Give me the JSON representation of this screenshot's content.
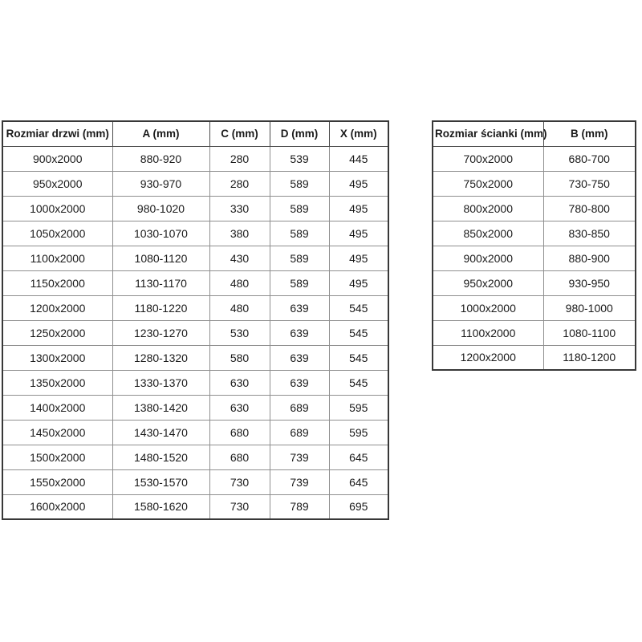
{
  "page": {
    "background_color": "#ffffff",
    "text_color": "#1a1a1a",
    "border_outer_color": "#383838",
    "border_inner_color": "#8f8f8f"
  },
  "tables": [
    {
      "name": "door-sizes-table",
      "headers": [
        "Rozmiar drzwi (mm)",
        "A (mm)",
        "C (mm)",
        "D (mm)",
        "X (mm)"
      ],
      "rows": [
        [
          "900x2000",
          "880-920",
          "280",
          "539",
          "445"
        ],
        [
          "950x2000",
          "930-970",
          "280",
          "589",
          "495"
        ],
        [
          "1000x2000",
          "980-1020",
          "330",
          "589",
          "495"
        ],
        [
          "1050x2000",
          "1030-1070",
          "380",
          "589",
          "495"
        ],
        [
          "1100x2000",
          "1080-1120",
          "430",
          "589",
          "495"
        ],
        [
          "1150x2000",
          "1130-1170",
          "480",
          "589",
          "495"
        ],
        [
          "1200x2000",
          "1180-1220",
          "480",
          "639",
          "545"
        ],
        [
          "1250x2000",
          "1230-1270",
          "530",
          "639",
          "545"
        ],
        [
          "1300x2000",
          "1280-1320",
          "580",
          "639",
          "545"
        ],
        [
          "1350x2000",
          "1330-1370",
          "630",
          "639",
          "545"
        ],
        [
          "1400x2000",
          "1380-1420",
          "630",
          "689",
          "595"
        ],
        [
          "1450x2000",
          "1430-1470",
          "680",
          "689",
          "595"
        ],
        [
          "1500x2000",
          "1480-1520",
          "680",
          "739",
          "645"
        ],
        [
          "1550x2000",
          "1530-1570",
          "730",
          "739",
          "645"
        ],
        [
          "1600x2000",
          "1580-1620",
          "730",
          "789",
          "695"
        ]
      ]
    },
    {
      "name": "wall-sizes-table",
      "headers": [
        "Rozmiar ścianki (mm)",
        "B (mm)"
      ],
      "rows": [
        [
          "700x2000",
          "680-700"
        ],
        [
          "750x2000",
          "730-750"
        ],
        [
          "800x2000",
          "780-800"
        ],
        [
          "850x2000",
          "830-850"
        ],
        [
          "900x2000",
          "880-900"
        ],
        [
          "950x2000",
          "930-950"
        ],
        [
          "1000x2000",
          "980-1000"
        ],
        [
          "1100x2000",
          "1080-1100"
        ],
        [
          "1200x2000",
          "1180-1200"
        ]
      ]
    }
  ]
}
